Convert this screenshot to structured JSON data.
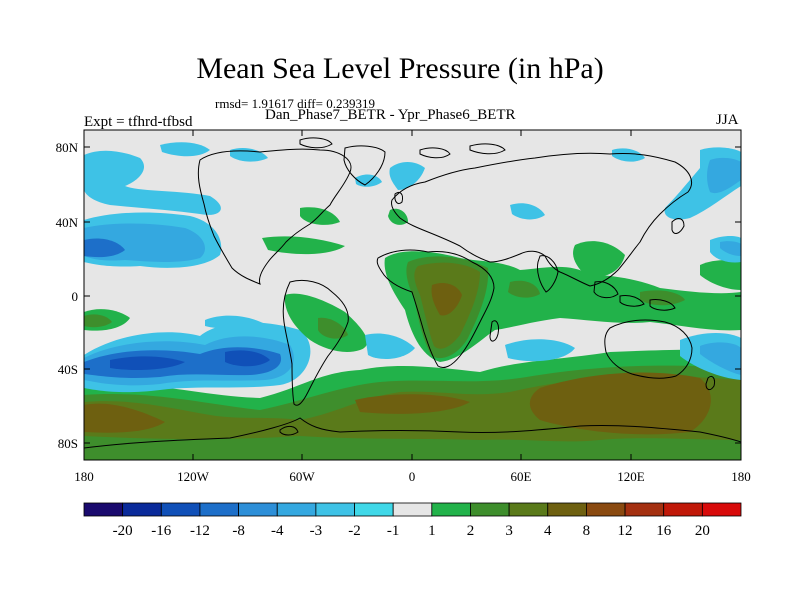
{
  "figure": {
    "title": "Mean Sea Level Pressure (in hPa)",
    "stats": "rmsd= 1.91617 diff= 0.239319",
    "subtitle": "Dan_Phase7_BETR - Ypr_Phase6_BETR",
    "expt": "Expt = tfhrd-tfbsd",
    "season": "JJA"
  },
  "axes": {
    "lat_labels": [
      "80N",
      "40N",
      "0",
      "40S",
      "80S"
    ],
    "lon_labels": [
      "180",
      "120W",
      "60W",
      "0",
      "60E",
      "120E",
      "180"
    ]
  },
  "colorbar": {
    "labels": [
      "-20",
      "-16",
      "-12",
      "-8",
      "-4",
      "-3",
      "-2",
      "-1",
      "1",
      "2",
      "3",
      "4",
      "8",
      "12",
      "16",
      "20"
    ],
    "colors": [
      "#1a0a6e",
      "#0a2a9a",
      "#1050b8",
      "#1d6fc9",
      "#2d8fd8",
      "#34a8e0",
      "#3ec2e6",
      "#40d8e8",
      "#e6e6e6",
      "#22b24a",
      "#3e8e2c",
      "#5a7a1a",
      "#6e6010",
      "#8a4a10",
      "#a43010",
      "#c01808",
      "#d80a0a"
    ]
  },
  "field_colors": {
    "land_line": "#000000",
    "neutral": "#e6e6e6",
    "cyan": "#3ec2e6",
    "light_blue": "#34a8e0",
    "mid_blue": "#1d6fc9",
    "dark_blue": "#1050b8",
    "green": "#22b24a",
    "olive": "#3e8e2c",
    "dark_olive": "#5a7a1a",
    "brown": "#6e6010"
  }
}
